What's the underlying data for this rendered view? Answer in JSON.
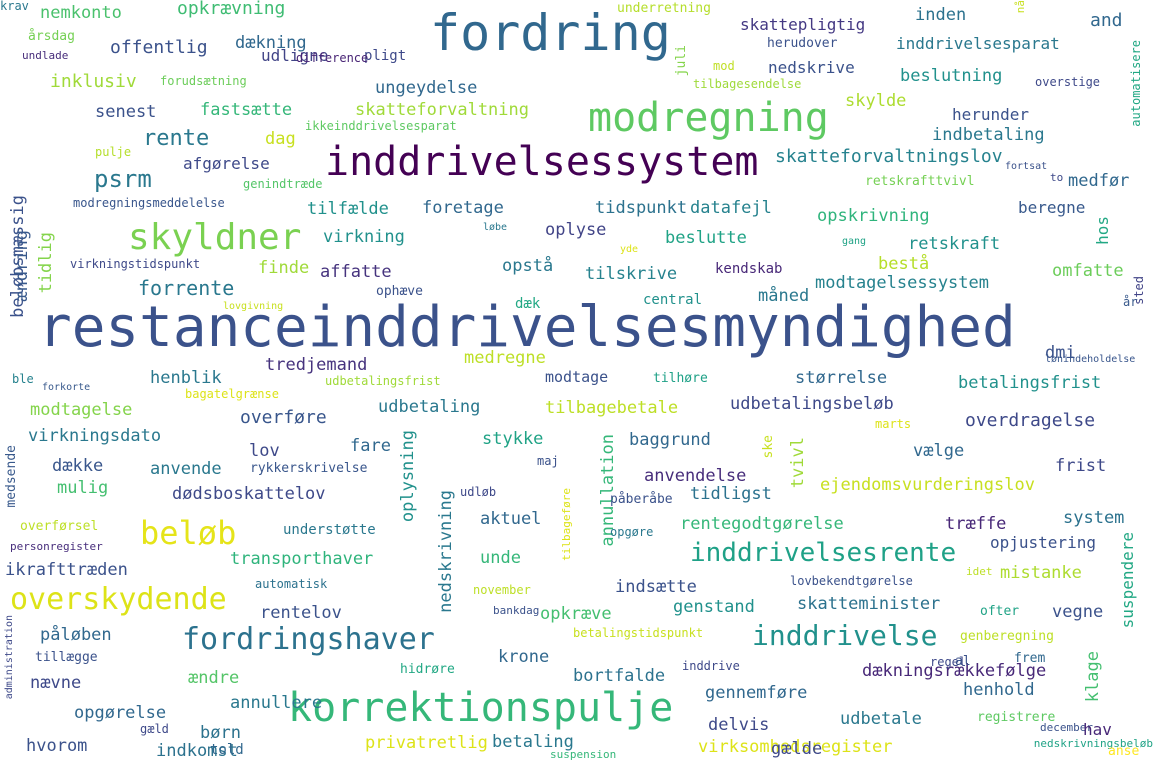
{
  "words": [
    {
      "text": "restanceinddrivelsesmyndighed",
      "color": "#3b528b"
    },
    {
      "text": "fordring",
      "color": "#31688e"
    },
    {
      "text": "inddrivelsessystem",
      "color": "#440154"
    },
    {
      "text": "modregning",
      "color": "#5ec962"
    },
    {
      "text": "korrektionspulje",
      "color": "#35b779"
    },
    {
      "text": "skyldner",
      "color": "#7ad151"
    },
    {
      "text": "fordringshaver",
      "color": "#2c728e"
    },
    {
      "text": "overskydende",
      "color": "#dde318"
    },
    {
      "text": "beløb",
      "color": "#e5e419"
    },
    {
      "text": "inddrivelse",
      "color": "#21918c"
    },
    {
      "text": "inddrivelsesrente",
      "color": "#1fa187"
    },
    {
      "text": "psrm",
      "color": "#2a788e"
    },
    {
      "text": "rente",
      "color": "#2a788e"
    },
    {
      "text": "forrente",
      "color": "#2a788e"
    },
    {
      "text": "opkrævning",
      "color": "#3fbc73"
    },
    {
      "text": "nemkonto",
      "color": "#4ac16d"
    },
    {
      "text": "årsdag",
      "color": "#75d054"
    },
    {
      "text": "undlade",
      "color": "#472d7b"
    },
    {
      "text": "underretning",
      "color": "#b5de2b"
    },
    {
      "text": "nå",
      "color": "#c8e020"
    },
    {
      "text": "skattepligtig",
      "color": "#443983"
    },
    {
      "text": "inden",
      "color": "#2c728e"
    },
    {
      "text": "and",
      "color": "#31688e"
    },
    {
      "text": "juli",
      "color": "#84d44b"
    },
    {
      "text": "herudover",
      "color": "#3b528b"
    },
    {
      "text": "inddrivelsesparat",
      "color": "#2a788e"
    },
    {
      "text": "automatisere",
      "color": "#22a884"
    },
    {
      "text": "offentlig",
      "color": "#3b528b"
    },
    {
      "text": "dækning",
      "color": "#31688e"
    },
    {
      "text": "udligne",
      "color": "#414487"
    },
    {
      "text": "pligt",
      "color": "#3e4989"
    },
    {
      "text": "difference",
      "color": "#482475"
    },
    {
      "text": "nedskrive",
      "color": "#3b528b"
    },
    {
      "text": "mod",
      "color": "#c0df25"
    },
    {
      "text": "tilbagesendelse",
      "color": "#9fda3a"
    },
    {
      "text": "beslutning",
      "color": "#21918c"
    },
    {
      "text": "overstige",
      "color": "#3e4989"
    },
    {
      "text": "inklusiv",
      "color": "#a0da39"
    },
    {
      "text": "forudsætning",
      "color": "#6ccd5a"
    },
    {
      "text": "ungeydelse",
      "color": "#31688e"
    },
    {
      "text": "skylde",
      "color": "#addc30"
    },
    {
      "text": "herunder",
      "color": "#3b528b"
    },
    {
      "text": "senest",
      "color": "#3b528b"
    },
    {
      "text": "fastsætte",
      "color": "#35b779"
    },
    {
      "text": "skatteforvaltning",
      "color": "#a0da39"
    },
    {
      "text": "ikkeinddrivelsesparat",
      "color": "#5ec962"
    },
    {
      "text": "indbetaling",
      "color": "#2a788e"
    },
    {
      "text": "pulje",
      "color": "#b5de2b"
    },
    {
      "text": "dag",
      "color": "#c8e020"
    },
    {
      "text": "skatteforvaltningslov",
      "color": "#26828e"
    },
    {
      "text": "afgørelse",
      "color": "#3e4989"
    },
    {
      "text": "genindtræde",
      "color": "#54c568"
    },
    {
      "text": "retskrafttvivl",
      "color": "#75d054"
    },
    {
      "text": "fortsat",
      "color": "#3b528b"
    },
    {
      "text": "to",
      "color": "#3e4989"
    },
    {
      "text": "medfør",
      "color": "#31688e"
    },
    {
      "text": "beløbsmæssig",
      "color": "#3b528b"
    },
    {
      "text": "modregningsmeddelelse",
      "color": "#39568c"
    },
    {
      "text": "tilfælde",
      "color": "#21918c"
    },
    {
      "text": "foretage",
      "color": "#31688e"
    },
    {
      "text": "tidspunkt",
      "color": "#2c728e"
    },
    {
      "text": "datafejl",
      "color": "#26828e"
    },
    {
      "text": "opskrivning",
      "color": "#2fb47c"
    },
    {
      "text": "beregne",
      "color": "#38598c"
    },
    {
      "text": "hos",
      "color": "#22a884"
    },
    {
      "text": "ændring",
      "color": "#38598c"
    },
    {
      "text": "tidlig",
      "color": "#84d44b"
    },
    {
      "text": "virkning",
      "color": "#21918c"
    },
    {
      "text": "oplyse",
      "color": "#414487"
    },
    {
      "text": "beslutte",
      "color": "#20a386"
    },
    {
      "text": "løbe",
      "color": "#2a788e"
    },
    {
      "text": "retskraft",
      "color": "#21918c"
    },
    {
      "text": "gang",
      "color": "#20a386"
    },
    {
      "text": "virkningstidspunkt",
      "color": "#3e4989"
    },
    {
      "text": "yde",
      "color": "#dde318"
    },
    {
      "text": "finde",
      "color": "#a0da39"
    },
    {
      "text": "affatte",
      "color": "#46337e"
    },
    {
      "text": "opstå",
      "color": "#2a788e"
    },
    {
      "text": "tilskrive",
      "color": "#26828e"
    },
    {
      "text": "kendskab",
      "color": "#482878"
    },
    {
      "text": "bestå",
      "color": "#b5de2b"
    },
    {
      "text": "omfatte",
      "color": "#6ccd5a"
    },
    {
      "text": "ophæve",
      "color": "#3b528b"
    },
    {
      "text": "lovgivning",
      "color": "#c8e020"
    },
    {
      "text": "central",
      "color": "#21918c"
    },
    {
      "text": "måned",
      "color": "#2a788e"
    },
    {
      "text": "modtagelsessystem",
      "color": "#26828e"
    },
    {
      "text": "sted",
      "color": "#414487"
    },
    {
      "text": "år",
      "color": "#38598c"
    },
    {
      "text": "dæk",
      "color": "#22a884"
    },
    {
      "text": "dmi",
      "color": "#3b528b"
    },
    {
      "text": "lønindeholdelse",
      "color": "#39568c"
    },
    {
      "text": "medregne",
      "color": "#bddf26"
    },
    {
      "text": "tredjemand",
      "color": "#46337e"
    },
    {
      "text": "ble",
      "color": "#26828e"
    },
    {
      "text": "forkorte",
      "color": "#38598c"
    },
    {
      "text": "henblik",
      "color": "#2a788e"
    },
    {
      "text": "udbetalingsfrist",
      "color": "#a0da39"
    },
    {
      "text": "modtage",
      "color": "#3b528b"
    },
    {
      "text": "tilhøre",
      "color": "#1fa187"
    },
    {
      "text": "størrelse",
      "color": "#31688e"
    },
    {
      "text": "betalingsfrist",
      "color": "#21918c"
    },
    {
      "text": "bagatelgrænse",
      "color": "#dde318"
    },
    {
      "text": "modtagelse",
      "color": "#84d44b"
    },
    {
      "text": "overføre",
      "color": "#39568c"
    },
    {
      "text": "udbetaling",
      "color": "#2a788e"
    },
    {
      "text": "tilbagebetale",
      "color": "#bddf26"
    },
    {
      "text": "udbetalingsbeløb",
      "color": "#3e4989"
    },
    {
      "text": "overdragelse",
      "color": "#3e4989"
    },
    {
      "text": "virkningsdato",
      "color": "#2a788e"
    },
    {
      "text": "fare",
      "color": "#31688e"
    },
    {
      "text": "stykke",
      "color": "#20a386"
    },
    {
      "text": "baggrund",
      "color": "#31688e"
    },
    {
      "text": "marts",
      "color": "#dde318"
    },
    {
      "text": "medsende",
      "color": "#38598c"
    },
    {
      "text": "dække",
      "color": "#39568c"
    },
    {
      "text": "lov",
      "color": "#3e4989"
    },
    {
      "text": "anvende",
      "color": "#2a788e"
    },
    {
      "text": "rykkerskrivelse",
      "color": "#39568c"
    },
    {
      "text": "maj",
      "color": "#3b528b"
    },
    {
      "text": "anvendelse",
      "color": "#472d7b"
    },
    {
      "text": "ske",
      "color": "#c8e020"
    },
    {
      "text": "tvivl",
      "color": "#a0da39"
    },
    {
      "text": "vælge",
      "color": "#31688e"
    },
    {
      "text": "frist",
      "color": "#3e4989"
    },
    {
      "text": "mulig",
      "color": "#44bf70"
    },
    {
      "text": "dødsboskattelov",
      "color": "#3e4989"
    },
    {
      "text": "oplysning",
      "color": "#21918c"
    },
    {
      "text": "annullation",
      "color": "#35b779"
    },
    {
      "text": "udløb",
      "color": "#3e4989"
    },
    {
      "text": "tidligst",
      "color": "#2c728e"
    },
    {
      "text": "ejendomsvurderingslov",
      "color": "#c8e020"
    },
    {
      "text": "påberåbe",
      "color": "#3b528b"
    },
    {
      "text": "aktuel",
      "color": "#31688e"
    },
    {
      "text": "tilbageføre",
      "color": "#dde318"
    },
    {
      "text": "træffe",
      "color": "#482878"
    },
    {
      "text": "system",
      "color": "#2c728e"
    },
    {
      "text": "overførsel",
      "color": "#bddf26"
    },
    {
      "text": "understøtte",
      "color": "#2a788e"
    },
    {
      "text": "opgøre",
      "color": "#2a788e"
    },
    {
      "text": "rentegodtgørelse",
      "color": "#35b779"
    },
    {
      "text": "personregister",
      "color": "#472d7b"
    },
    {
      "text": "opjustering",
      "color": "#3b528b"
    },
    {
      "text": "suspendere",
      "color": "#22a884"
    },
    {
      "text": "nedskrivning",
      "color": "#2a788e"
    },
    {
      "text": "unde",
      "color": "#35b779"
    },
    {
      "text": "ikrafttræden",
      "color": "#3b528b"
    },
    {
      "text": "transporthaver",
      "color": "#2fb47c"
    },
    {
      "text": "indsætte",
      "color": "#3b528b"
    },
    {
      "text": "idet",
      "color": "#bddf26"
    },
    {
      "text": "mistanke",
      "color": "#addc30"
    },
    {
      "text": "automatisk",
      "color": "#2c728e"
    },
    {
      "text": "november",
      "color": "#bddf26"
    },
    {
      "text": "lovbekendtgørelse",
      "color": "#3b528b"
    },
    {
      "text": "bankdag",
      "color": "#3b528b"
    },
    {
      "text": "opkræve",
      "color": "#44bf70"
    },
    {
      "text": "genstand",
      "color": "#21918c"
    },
    {
      "text": "skatteminister",
      "color": "#2c728e"
    },
    {
      "text": "ofter",
      "color": "#20a386"
    },
    {
      "text": "vegne",
      "color": "#3b528b"
    },
    {
      "text": "rentelov",
      "color": "#3b528b"
    },
    {
      "text": "administration",
      "color": "#3e4989"
    },
    {
      "text": "påløben",
      "color": "#31688e"
    },
    {
      "text": "tillægge",
      "color": "#3b528b"
    },
    {
      "text": "betalingstidspunkt",
      "color": "#c8e020"
    },
    {
      "text": "genberegning",
      "color": "#bddf26"
    },
    {
      "text": "krone",
      "color": "#31688e"
    },
    {
      "text": "hidrøre",
      "color": "#22a884"
    },
    {
      "text": "ændre",
      "color": "#54c568"
    },
    {
      "text": "bortfalde",
      "color": "#2c728e"
    },
    {
      "text": "inddrive",
      "color": "#3e4989"
    },
    {
      "text": "dækningsrækkefølge",
      "color": "#482878"
    },
    {
      "text": "regel",
      "color": "#3e4989"
    },
    {
      "text": "al",
      "color": "#3b528b"
    },
    {
      "text": "frem",
      "color": "#31688e"
    },
    {
      "text": "klage",
      "color": "#44bf70"
    },
    {
      "text": "nævne",
      "color": "#3e4989"
    },
    {
      "text": "gennemføre",
      "color": "#31688e"
    },
    {
      "text": "henhold",
      "color": "#31688e"
    },
    {
      "text": "opgørelse",
      "color": "#31688e"
    },
    {
      "text": "annullere",
      "color": "#2a788e"
    },
    {
      "text": "børn",
      "color": "#2c728e"
    },
    {
      "text": "delvis",
      "color": "#3e4989"
    },
    {
      "text": "udbetale",
      "color": "#2a788e"
    },
    {
      "text": "registrere",
      "color": "#5ec962"
    },
    {
      "text": "december",
      "color": "#3b528b"
    },
    {
      "text": "hav",
      "color": "#482878"
    },
    {
      "text": "gæld",
      "color": "#3e4989"
    },
    {
      "text": "hvorom",
      "color": "#3b528b"
    },
    {
      "text": "indkomst",
      "color": "#2c728e"
    },
    {
      "text": "told",
      "color": "#31688e"
    },
    {
      "text": "privatretlig",
      "color": "#dde318"
    },
    {
      "text": "betaling",
      "color": "#2a788e"
    },
    {
      "text": "suspension",
      "color": "#35b779"
    },
    {
      "text": "virksomhedsregister",
      "color": "#dde318"
    },
    {
      "text": "gælde",
      "color": "#3e4989"
    },
    {
      "text": "nedskrivningsbeløb",
      "color": "#20a386"
    },
    {
      "text": "anse",
      "color": "#fde725"
    },
    {
      "text": "krav",
      "color": "#2a788e"
    }
  ]
}
